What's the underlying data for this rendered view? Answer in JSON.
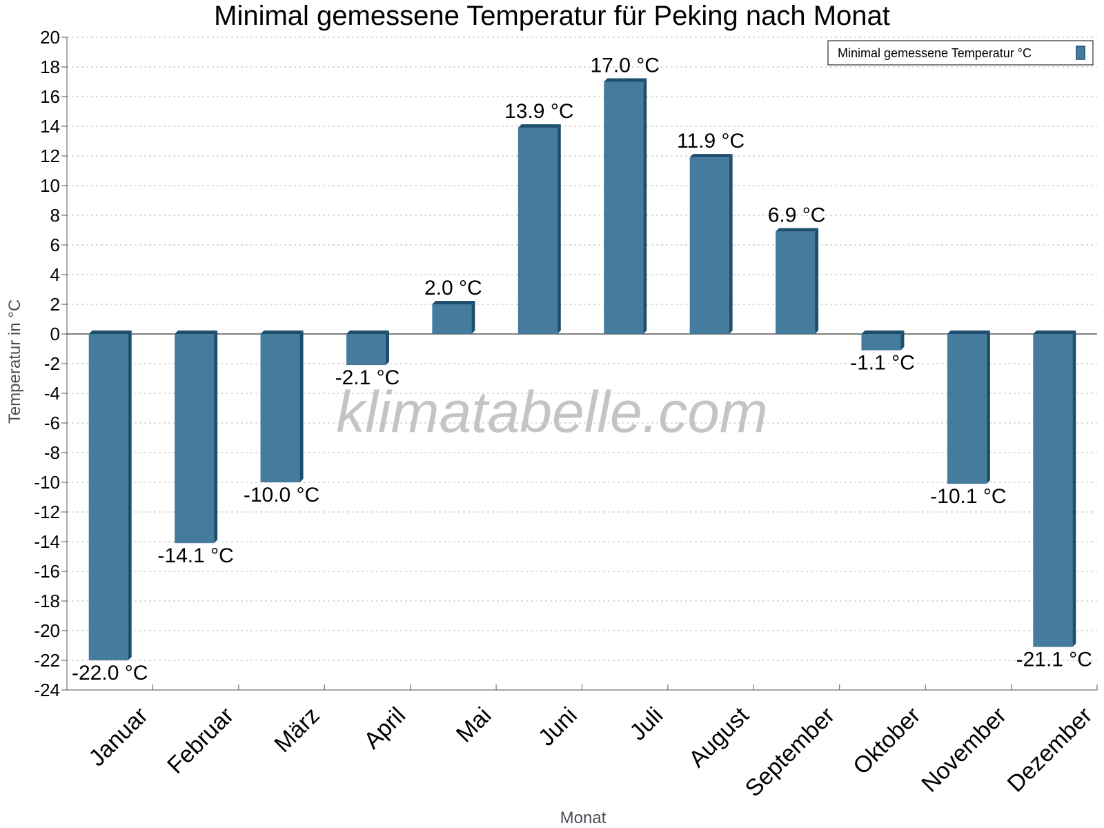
{
  "chart_data": {
    "type": "bar",
    "title": "Minimal gemessene Temperatur für Peking nach Monat",
    "xlabel": "Monat",
    "ylabel": "Temperatur in °C",
    "categories": [
      "Januar",
      "Februar",
      "März",
      "April",
      "Mai",
      "Juni",
      "Juli",
      "August",
      "September",
      "Oktober",
      "November",
      "Dezember"
    ],
    "series": [
      {
        "name": "Minimal gemessene Temperatur °C",
        "values": [
          -22.0,
          -14.1,
          -10.0,
          -2.1,
          2.0,
          13.9,
          17.0,
          11.9,
          6.9,
          -1.1,
          -10.1,
          -21.1
        ],
        "labels": [
          "-22.0 °C",
          "-14.1 °C",
          "-10.0 °C",
          "-2.1 °C",
          "2.0 °C",
          "13.9 °C",
          "17.0 °C",
          "11.9 °C",
          "6.9 °C",
          "-1.1 °C",
          "-10.1 °C",
          "-21.1 °C"
        ],
        "color": "#457b9d",
        "edge_color": "#1d4e6e"
      }
    ],
    "ylim": [
      -24,
      20
    ],
    "yticks": [
      "20",
      "18",
      "16",
      "14",
      "12",
      "10",
      "8",
      "6",
      "4",
      "2",
      "0",
      "-2",
      "-4",
      "-6",
      "-8",
      "-10",
      "-12",
      "-14",
      "-16",
      "-18",
      "-20",
      "-22",
      "-24"
    ],
    "grid": true,
    "legend_position": "top-right",
    "watermark": "klimatabelle.com"
  }
}
